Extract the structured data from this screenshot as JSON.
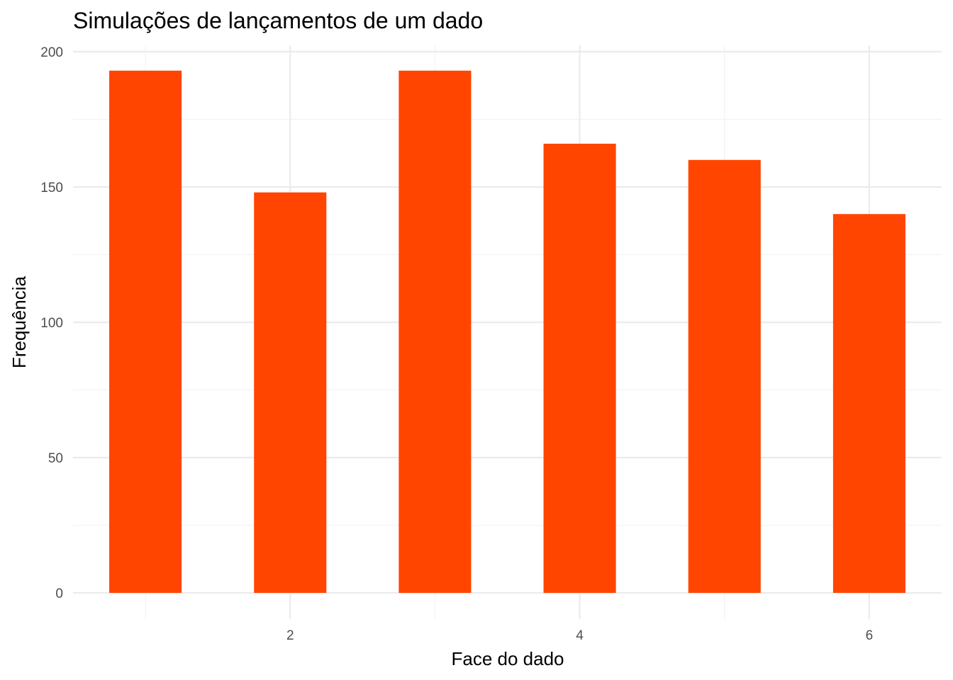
{
  "chart_data": {
    "type": "bar",
    "title": "Simulações de lançamentos de um dado",
    "xlabel": "Face do dado",
    "ylabel": "Frequência",
    "x": [
      1,
      2,
      3,
      4,
      5,
      6
    ],
    "values": [
      193,
      148,
      193,
      166,
      160,
      140
    ],
    "xlim": [
      0.5,
      6.5
    ],
    "ylim": [
      0,
      200
    ],
    "x_ticks": [
      2,
      4,
      6
    ],
    "y_ticks": [
      0,
      50,
      100,
      150,
      200
    ],
    "grid": true,
    "legend": "none",
    "colors": {
      "bar": "#FF4500",
      "grid_major": "#EBEBEB",
      "grid_minor": "#F3F3F3",
      "tick_text": "#4D4D4D",
      "text": "#000000"
    }
  }
}
